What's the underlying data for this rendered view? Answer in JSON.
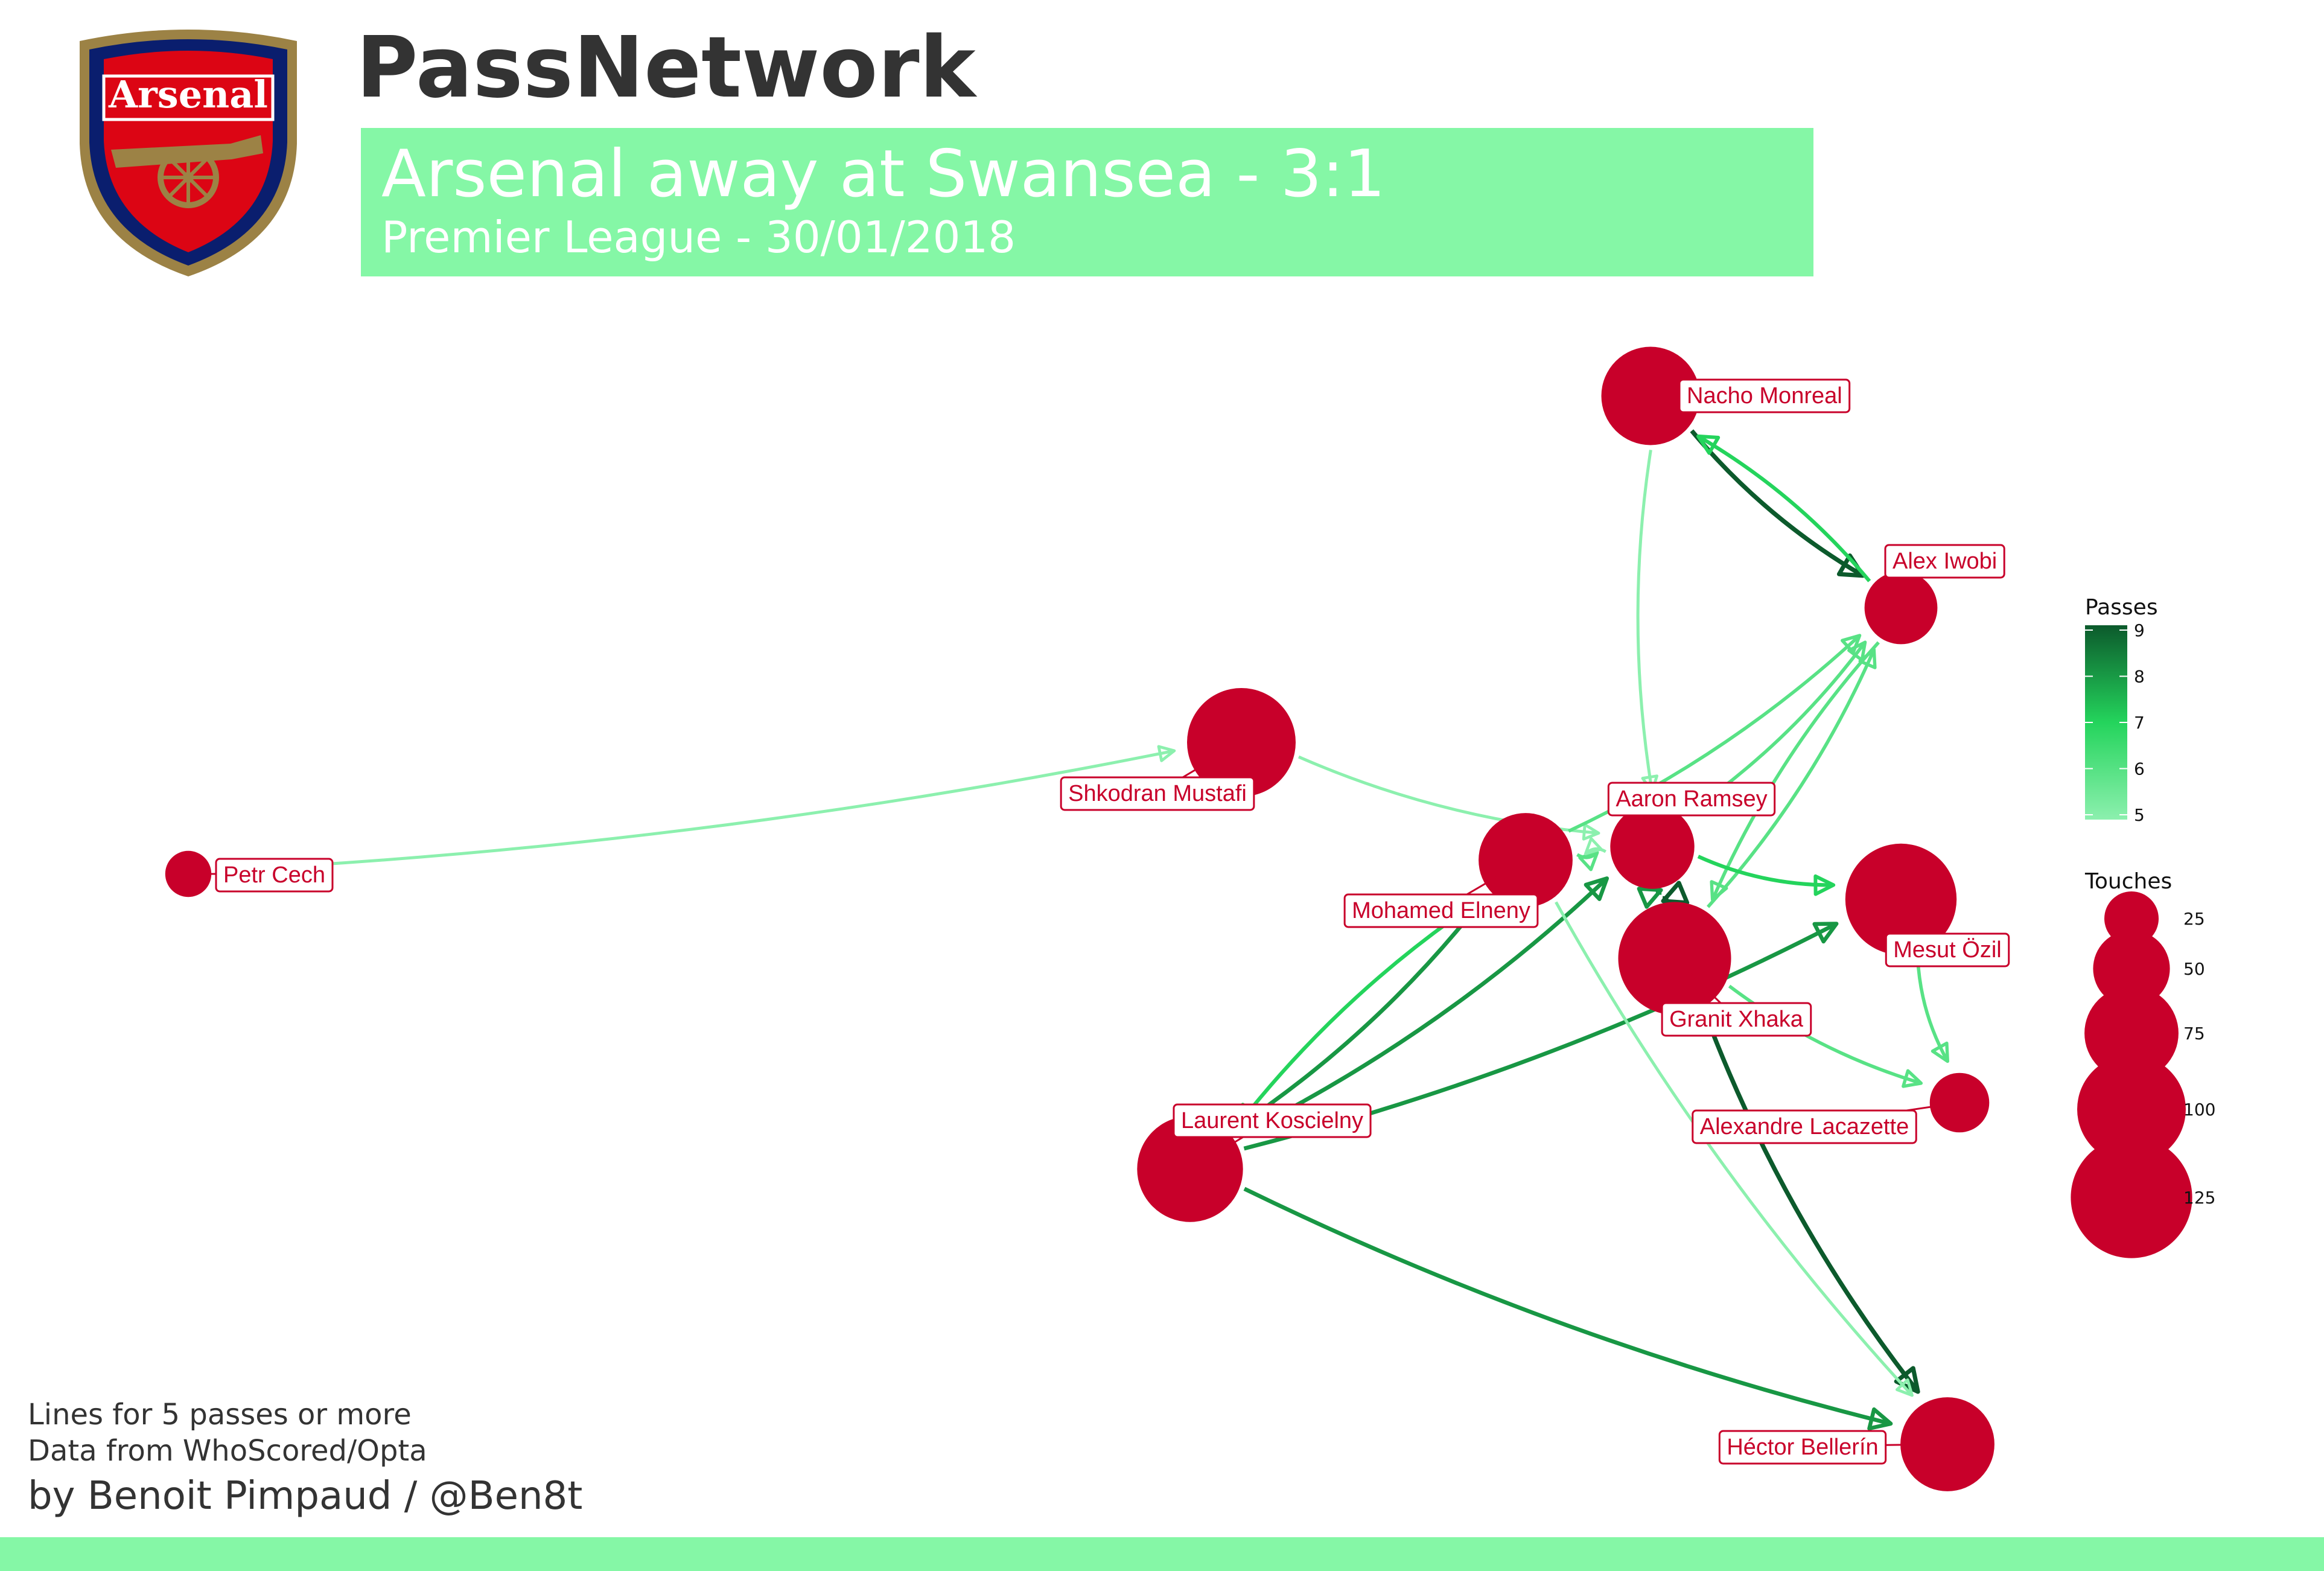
{
  "header": {
    "title": "PassNetwork",
    "match": "Arsenal away at Swansea - 3:1",
    "competition": "Premier League - 30/01/2018",
    "banner_color": "#85f7a6"
  },
  "crest": {
    "icon": "arsenal-crest-icon",
    "text": "Arsenal",
    "red": "#dc0514",
    "navy": "#0a1e6e",
    "gold": "#9c8245"
  },
  "players": [
    {
      "id": "cech",
      "name": "Petr Cech",
      "touches": 18
    },
    {
      "id": "mustafi",
      "name": "Shkodran Mustafi",
      "touches": 100
    },
    {
      "id": "monreal",
      "name": "Nacho Monreal",
      "touches": 82
    },
    {
      "id": "iwobi",
      "name": "Alex Iwobi",
      "touches": 45
    },
    {
      "id": "ramsey",
      "name": "Aaron Ramsey",
      "touches": 60
    },
    {
      "id": "elneny",
      "name": "Mohamed Elneny",
      "touches": 75
    },
    {
      "id": "ozil",
      "name": "Mesut Özil",
      "touches": 105
    },
    {
      "id": "xhaka",
      "name": "Granit Xhaka",
      "touches": 108
    },
    {
      "id": "lacazette",
      "name": "Alexandre Lacazette",
      "touches": 30
    },
    {
      "id": "koscielny",
      "name": "Laurent Koscielny",
      "touches": 95
    },
    {
      "id": "bellerin",
      "name": "Héctor Bellerín",
      "touches": 75
    }
  ],
  "passes": [
    {
      "from": "cech",
      "to": "mustafi",
      "count": 5
    },
    {
      "from": "mustafi",
      "to": "ramsey",
      "count": 5
    },
    {
      "from": "monreal",
      "to": "iwobi",
      "count": 9
    },
    {
      "from": "iwobi",
      "to": "monreal",
      "count": 7
    },
    {
      "from": "monreal",
      "to": "ramsey",
      "count": 5
    },
    {
      "from": "elneny",
      "to": "iwobi",
      "count": 6
    },
    {
      "from": "ramsey",
      "to": "iwobi",
      "count": 6
    },
    {
      "from": "xhaka",
      "to": "iwobi",
      "count": 6
    },
    {
      "from": "iwobi",
      "to": "xhaka",
      "count": 6
    },
    {
      "from": "elneny",
      "to": "ramsey",
      "count": 6
    },
    {
      "from": "ramsey",
      "to": "elneny",
      "count": 5
    },
    {
      "from": "ramsey",
      "to": "ozil",
      "count": 7
    },
    {
      "from": "xhaka",
      "to": "ramsey",
      "count": 9
    },
    {
      "from": "ramsey",
      "to": "xhaka",
      "count": 8
    },
    {
      "from": "xhaka",
      "to": "lacazette",
      "count": 6
    },
    {
      "from": "ozil",
      "to": "lacazette",
      "count": 6
    },
    {
      "from": "koscielny",
      "to": "ramsey",
      "count": 8
    },
    {
      "from": "koscielny",
      "to": "ozil",
      "count": 8
    },
    {
      "from": "koscielny",
      "to": "elneny",
      "count": 8
    },
    {
      "from": "elneny",
      "to": "koscielny",
      "count": 7
    },
    {
      "from": "koscielny",
      "to": "bellerin",
      "count": 8
    },
    {
      "from": "xhaka",
      "to": "bellerin",
      "count": 9
    },
    {
      "from": "elneny",
      "to": "bellerin",
      "count": 5
    }
  ],
  "legend": {
    "passes_title": "Passes",
    "passes_ticks": [
      9,
      8,
      7,
      6,
      5
    ],
    "passes_colors": [
      "#0c5a2c",
      "#24d45c",
      "#8cf0ae"
    ],
    "touches_title": "Touches",
    "touches_ticks": [
      25,
      50,
      75,
      100,
      125
    ]
  },
  "node_color": "#c8002a",
  "footer": {
    "note1": "Lines for 5 passes or more",
    "note2": "Data from WhoScored/Opta",
    "credit": "by Benoit Pimpaud / @Ben8t",
    "bar_color": "#85f7a6"
  }
}
